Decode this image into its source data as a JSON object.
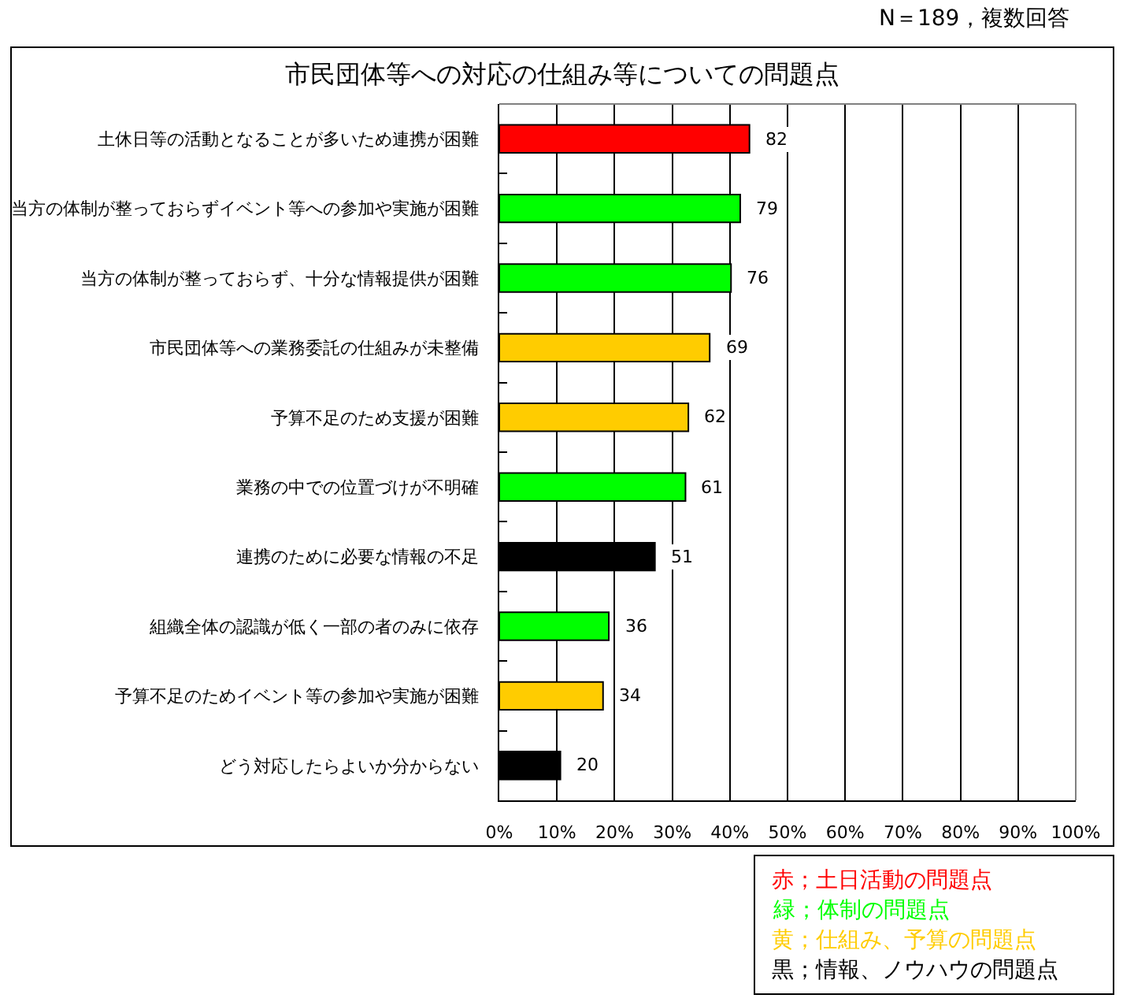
{
  "chart_data": {
    "type": "bar",
    "orientation": "horizontal",
    "title": "市民団体等への対応の仕組み等についての問題点",
    "categories": [
      "土休日等の活動となることが多いため連携が困難",
      "当方の体制が整っておらずイベント等への参加や実施が困難",
      "当方の体制が整っておらず、十分な情報提供が困難",
      "市民団体等への業務委託の仕組みが未整備",
      "予算不足のため支援が困難",
      "業務の中での位置づけが不明確",
      "連携のために必要な情報の不足",
      "組織全体の認識が低く一部の者のみに依存",
      "予算不足のためイベント等の参加や実施が困難",
      "どう対応したらよいか分からない"
    ],
    "series": [
      {
        "name": "赤；土日活動の問題点",
        "color": "#ff0000",
        "values": [
          43.4,
          null,
          null,
          null,
          null,
          null,
          null,
          null,
          null,
          null
        ]
      },
      {
        "name": "緑；体制の問題点",
        "color": "#00ff00",
        "values": [
          null,
          41.8,
          40.2,
          null,
          null,
          32.3,
          null,
          19.0,
          null,
          null
        ]
      },
      {
        "name": "黄；仕組み、予算の問題点",
        "color": "#ffcc00",
        "values": [
          null,
          null,
          null,
          36.5,
          32.8,
          null,
          null,
          null,
          18.0,
          null
        ]
      },
      {
        "name": "黒；情報、ノウハウの問題点",
        "color": "#000000",
        "values": [
          null,
          null,
          null,
          null,
          null,
          null,
          27.0,
          null,
          null,
          10.6
        ]
      }
    ],
    "xlim": [
      0,
      100
    ],
    "xticks": [
      {
        "value": 0,
        "label": "0%"
      },
      {
        "value": 10,
        "label": "10%"
      },
      {
        "value": 20,
        "label": "20%"
      },
      {
        "value": 30,
        "label": "30%"
      },
      {
        "value": 40,
        "label": "40%"
      },
      {
        "value": 50,
        "label": "50%"
      },
      {
        "value": 60,
        "label": "60%"
      },
      {
        "value": 70,
        "label": "70%"
      },
      {
        "value": 80,
        "label": "80%"
      },
      {
        "value": 90,
        "label": "90%"
      },
      {
        "value": 100,
        "label": "100%"
      }
    ],
    "grid": "x",
    "legend": "bottom right",
    "annotations": [
      "N＝189，複数回答",
      {
        "text": "82",
        "x": 43.4,
        "y": "土休日等の活動となることが多いため連携が困難"
      },
      {
        "text": "79",
        "x": 41.8,
        "y": "当方の体制が整っておらずイベント等への参加や実施が困難"
      },
      {
        "text": "76",
        "x": 40.2,
        "y": "当方の体制が整っておらず、十分な情報提供が困難"
      },
      {
        "text": "69",
        "x": 36.5,
        "y": "市民団体等への業務委託の仕組みが未整備"
      },
      {
        "text": "62",
        "x": 32.8,
        "y": "予算不足のため支援が困難"
      },
      {
        "text": "61",
        "x": 32.3,
        "y": "業務の中での位置づけが不明確"
      },
      {
        "text": "51",
        "x": 27.0,
        "y": "連携のために必要な情報の不足"
      },
      {
        "text": "36",
        "x": 19.0,
        "y": "組織全体の認識が低く一部の者のみに依存"
      },
      {
        "text": "34",
        "x": 18.0,
        "y": "予算不足のためイベント等の参加や実施が困難"
      },
      {
        "text": "20",
        "x": 10.6,
        "y": "どう対応したらよいか分からない"
      }
    ]
  }
}
